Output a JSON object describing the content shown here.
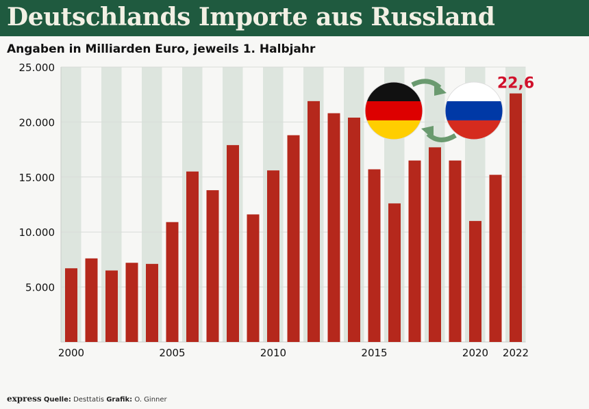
{
  "title": "Deutschlands Importe aus Russland",
  "subtitle": "Angaben in Milliarden Euro, jeweils 1. Halbjahr",
  "footer": {
    "logo": "express",
    "source_label": "Quelle:",
    "source": "Desttatis",
    "graphic_label": "Grafik:",
    "graphic": "O. Ginner"
  },
  "colors": {
    "bar": "#b5281c",
    "banner": "#1f5a3f",
    "stripe": "#dde5de",
    "highlight": "#d0112b"
  },
  "chart_data": {
    "type": "bar",
    "title": "Deutschlands Importe aus Russland",
    "subtitle": "Angaben in Milliarden Euro, jeweils 1. Halbjahr",
    "categories": [
      "2000",
      "2001",
      "2002",
      "2003",
      "2004",
      "2005",
      "2006",
      "2007",
      "2008",
      "2009",
      "2010",
      "2011",
      "2012",
      "2013",
      "2014",
      "2015",
      "2016",
      "2017",
      "2018",
      "2019",
      "2020",
      "2021",
      "2022"
    ],
    "values": [
      6700,
      7600,
      6500,
      7200,
      7100,
      10900,
      15500,
      13800,
      17900,
      11600,
      15600,
      18800,
      21900,
      20800,
      20400,
      15700,
      12600,
      16500,
      17700,
      16500,
      11000,
      15200,
      22600
    ],
    "ylim": [
      0,
      25000
    ],
    "yticks": [
      5000,
      10000,
      15000,
      20000,
      25000
    ],
    "ytick_labels": [
      "5.000",
      "10.000",
      "15.000",
      "20.000",
      "25.000"
    ],
    "xtick_labels": [
      "2000",
      "2005",
      "2010",
      "2015",
      "2020",
      "2022"
    ],
    "annotation": "22,6",
    "grid": true
  }
}
